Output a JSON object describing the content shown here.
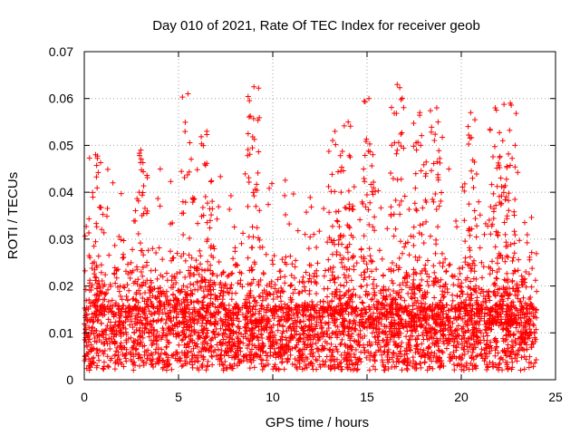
{
  "chart_data": {
    "type": "scatter",
    "title": "Day 010 of 2021, Rate Of TEC Index for receiver geob",
    "xlabel": "GPS time / hours",
    "ylabel": "ROTI / TECUs",
    "xlim": [
      0,
      25
    ],
    "ylim": [
      0,
      0.07
    ],
    "xticks": [
      0,
      5,
      10,
      15,
      20,
      25
    ],
    "yticks": [
      0,
      0.01,
      0.02,
      0.03,
      0.04,
      0.05,
      0.06,
      0.07
    ],
    "xtick_labels": [
      "0",
      "5",
      "10",
      "15",
      "20",
      "25"
    ],
    "ytick_labels": [
      "0",
      "0.01",
      "0.02",
      "0.03",
      "0.04",
      "0.05",
      "0.06",
      "0.07"
    ],
    "grid": true,
    "marker": "plus",
    "color": "#ff0000",
    "data_coverage_hours": [
      0,
      24
    ],
    "baseline_range": [
      0.005,
      0.015
    ],
    "series": [
      {
        "name": "ROTI",
        "notable_peaks": [
          {
            "x": 0.6,
            "y": 0.048
          },
          {
            "x": 3.0,
            "y": 0.049
          },
          {
            "x": 5.5,
            "y": 0.061
          },
          {
            "x": 6.5,
            "y": 0.053
          },
          {
            "x": 9.0,
            "y": 0.0625
          },
          {
            "x": 13.3,
            "y": 0.053
          },
          {
            "x": 14.0,
            "y": 0.055
          },
          {
            "x": 15.1,
            "y": 0.06
          },
          {
            "x": 16.6,
            "y": 0.063
          },
          {
            "x": 17.8,
            "y": 0.057
          },
          {
            "x": 18.7,
            "y": 0.058
          },
          {
            "x": 20.5,
            "y": 0.057
          },
          {
            "x": 21.8,
            "y": 0.058
          },
          {
            "x": 22.6,
            "y": 0.059
          },
          {
            "x": 22.2,
            "y": 0.051
          }
        ]
      }
    ]
  }
}
